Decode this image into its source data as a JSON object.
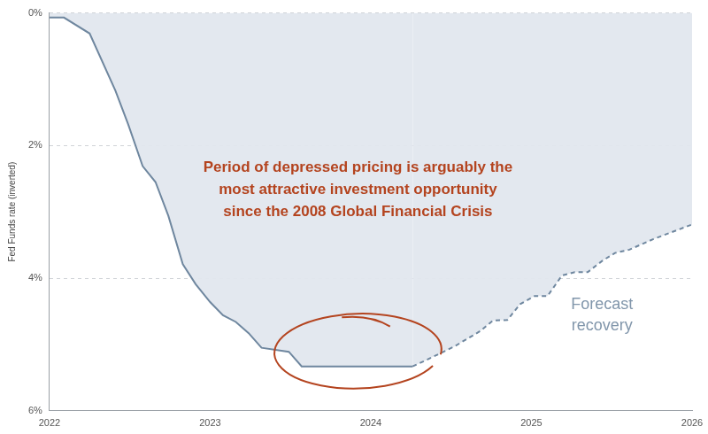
{
  "chart_data": {
    "type": "area",
    "y_label": "Fed Funds rate (inverted)",
    "xlim": [
      2022,
      2026
    ],
    "xticks": [
      2022,
      2023,
      2024,
      2025,
      2026
    ],
    "ylim": [
      6,
      0
    ],
    "yticks": [
      {
        "value": 0,
        "label": "0%"
      },
      {
        "value": 2,
        "label": "2%"
      },
      {
        "value": 4,
        "label": "4%"
      },
      {
        "value": 6,
        "label": "6%"
      }
    ],
    "grid": true,
    "series": [
      {
        "color": "#6f879f",
        "line_style": "solid",
        "x": [
          2022.0,
          2022.09,
          2022.25,
          2022.41,
          2022.49,
          2022.58,
          2022.66,
          2022.74,
          2022.83,
          2022.91,
          2023.0,
          2023.08,
          2023.16,
          2023.24,
          2023.32,
          2023.49,
          2023.57,
          2024.26
        ],
        "values": [
          0.07,
          0.07,
          0.31,
          1.17,
          1.68,
          2.31,
          2.55,
          3.06,
          3.79,
          4.09,
          4.36,
          4.56,
          4.66,
          4.83,
          5.05,
          5.11,
          5.33,
          5.33
        ]
      },
      {
        "color": "#6f879f",
        "line_style": "dashed",
        "x": [
          2024.26,
          2024.35,
          2024.52,
          2024.68,
          2024.76,
          2024.85,
          2024.93,
          2025.02,
          2025.1,
          2025.19,
          2025.27,
          2025.35,
          2025.44,
          2025.52,
          2025.61,
          2025.76,
          2026.0
        ],
        "values": [
          5.33,
          5.23,
          5.03,
          4.8,
          4.64,
          4.63,
          4.39,
          4.27,
          4.27,
          3.96,
          3.91,
          3.91,
          3.74,
          3.62,
          3.57,
          3.41,
          3.19
        ]
      }
    ],
    "annotations": [
      {
        "text": [
          "Period of depressed pricing is arguably the",
          "most attractive investment opportunity",
          "since the 2008 Global Financial Crisis"
        ],
        "color": "#b4441f"
      },
      {
        "text": [
          "Forecast",
          "recovery"
        ],
        "color": "#8196ab"
      }
    ]
  }
}
